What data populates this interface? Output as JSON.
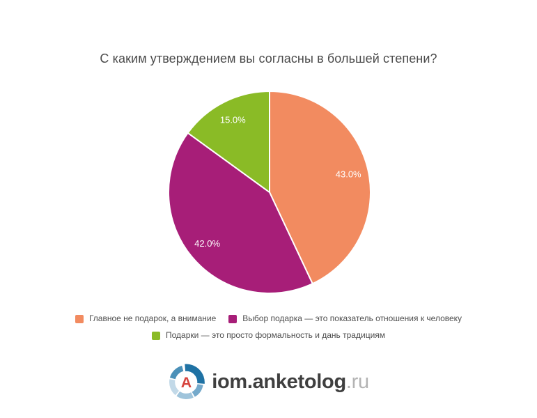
{
  "chart_data": {
    "type": "pie",
    "title": "С каким утверждением вы согласны в большей степени?",
    "direction": "clockwise",
    "start_angle_deg": 0,
    "legend_position": "bottom",
    "label_color": "#ffffff",
    "slices": [
      {
        "label": "Главное не подарок, а внимание",
        "value": 43.0,
        "display": "43.0%",
        "color": "#F28B60"
      },
      {
        "label": "Выбор подарка — это показатель отношения к человеку",
        "value": 42.0,
        "display": "42.0%",
        "color": "#A71E78"
      },
      {
        "label": "Подарки — это просто формальность и дань традициям",
        "value": 15.0,
        "display": "15.0%",
        "color": "#8ABB26"
      }
    ]
  },
  "branding": {
    "site": "iom.anketolog",
    "tld": ".ru",
    "logo_letter": "A",
    "colors": {
      "logo_letter_red": "#D6443E",
      "ring_dark_blue": "#1F72A4",
      "ring_medium_blue": "#4B90B8",
      "ring_light_blue_1": "#74A9CB",
      "ring_light_blue_2": "#9FC4DB",
      "ring_light_blue_3": "#C2D9E8"
    }
  }
}
